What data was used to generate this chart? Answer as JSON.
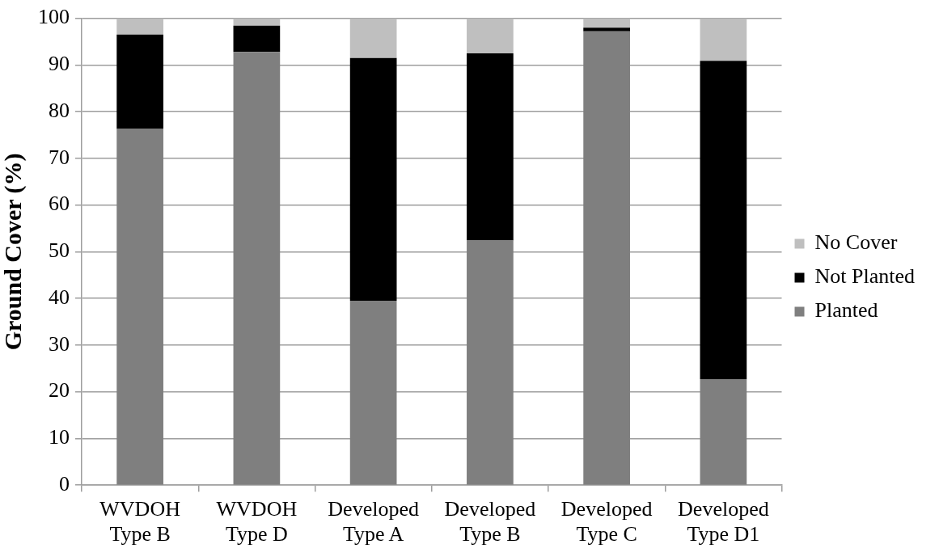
{
  "chart_data": {
    "type": "bar",
    "stacked": true,
    "ylabel": "Ground Cover (%)",
    "categories": [
      "WVDOH Type B",
      "WVDOH Type D",
      "Developed Type A",
      "Developed Type B",
      "Developed Type C",
      "Developed Type D1"
    ],
    "series": [
      {
        "name": "Planted",
        "color": "#7f7f7f",
        "values": [
          76.3,
          92.8,
          39.5,
          52.4,
          97.2,
          22.7
        ]
      },
      {
        "name": "Not Planted",
        "color": "#000000",
        "values": [
          20.2,
          5.6,
          52,
          40.1,
          0.8,
          68.2
        ]
      },
      {
        "name": "No Cover",
        "color": "#bfbfbf",
        "values": [
          3.5,
          1.6,
          8.5,
          7.5,
          2,
          9.1
        ]
      }
    ],
    "ylim": [
      0,
      100
    ],
    "yticks": [
      0,
      10,
      20,
      30,
      40,
      50,
      60,
      70,
      80,
      90,
      100
    ],
    "grid": "y",
    "legend": "right"
  }
}
